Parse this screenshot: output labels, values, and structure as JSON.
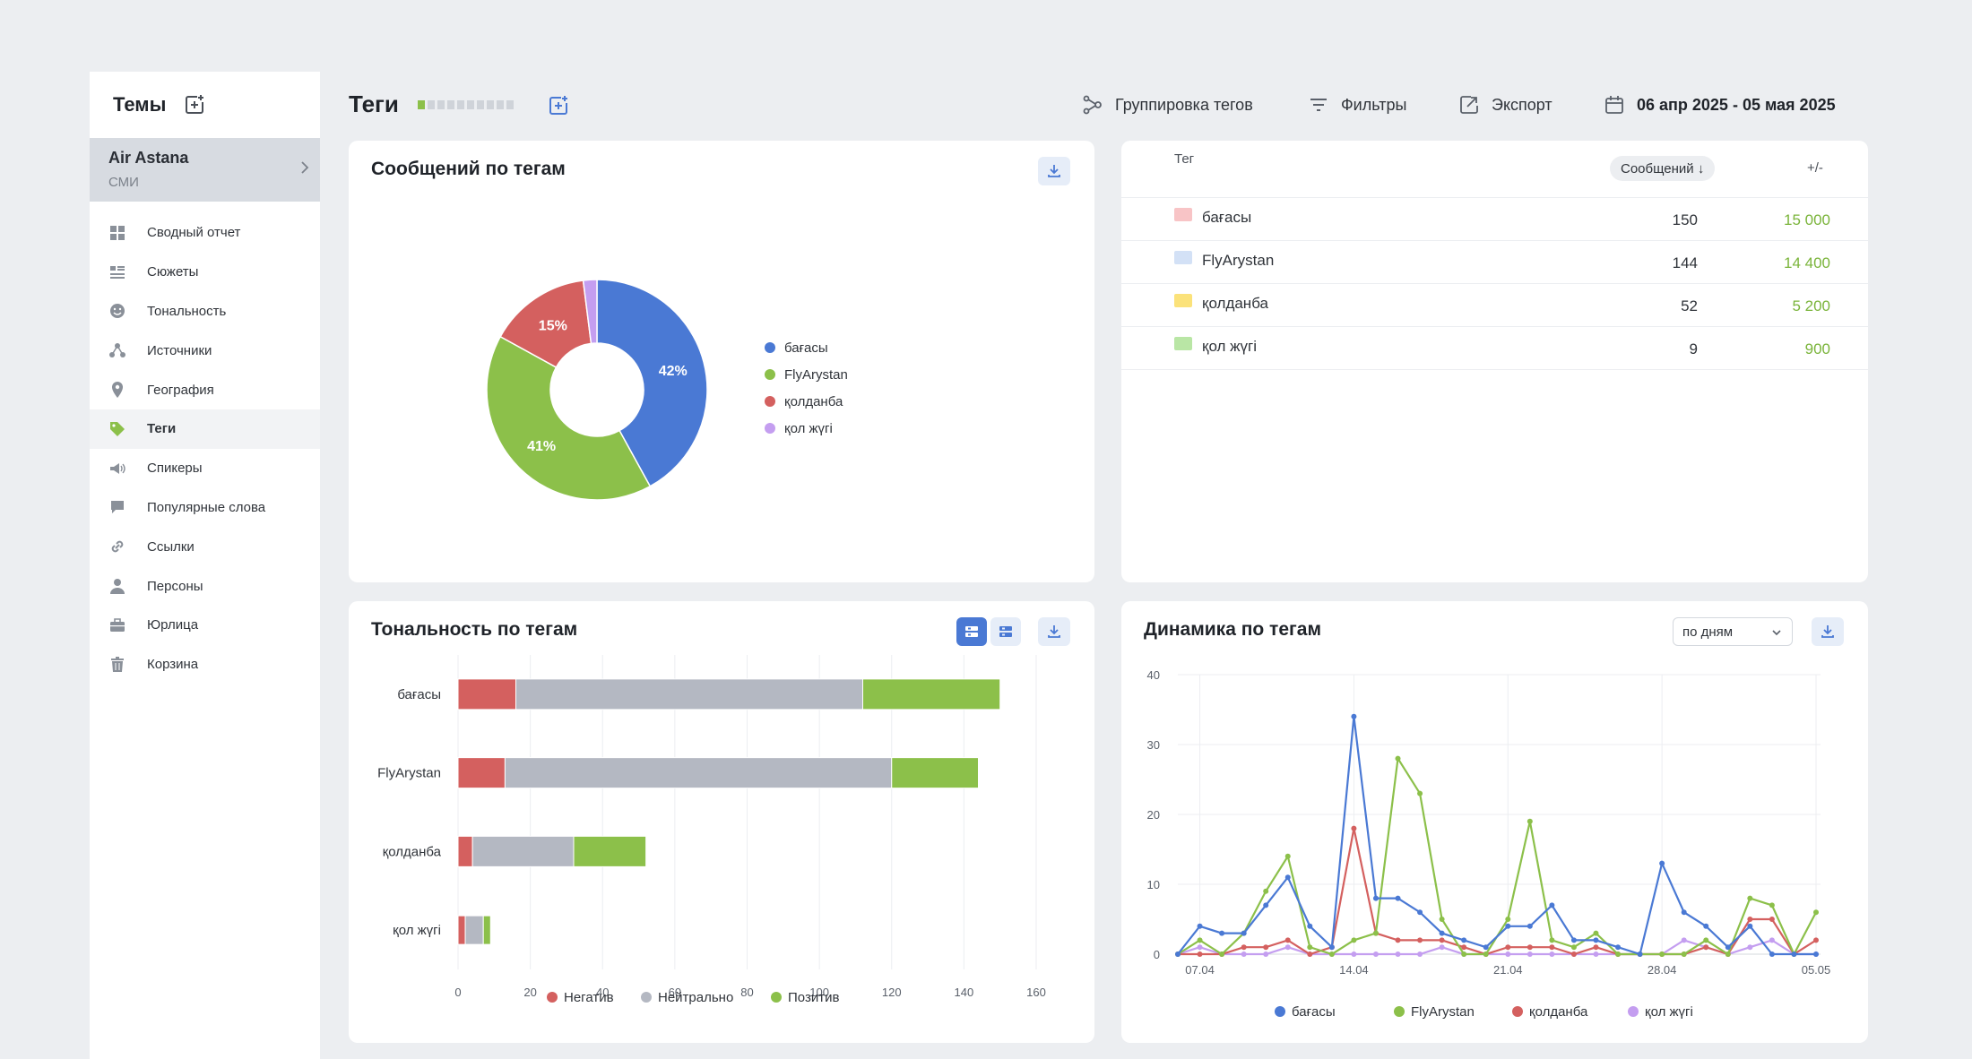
{
  "sidebar": {
    "title": "Темы",
    "topic": {
      "name": "Air Astana",
      "sub": "СМИ"
    },
    "items": [
      {
        "label": "Сводный отчет",
        "icon": "grid-icon"
      },
      {
        "label": "Сюжеты",
        "icon": "list-icon"
      },
      {
        "label": "Тональность",
        "icon": "smile-icon"
      },
      {
        "label": "Источники",
        "icon": "network-icon"
      },
      {
        "label": "География",
        "icon": "map-pin-icon"
      },
      {
        "label": "Теги",
        "icon": "tag-icon",
        "active": true
      },
      {
        "label": "Спикеры",
        "icon": "speaker-icon"
      },
      {
        "label": "Популярные слова",
        "icon": "chat-icon"
      },
      {
        "label": "Ссылки",
        "icon": "link-icon"
      },
      {
        "label": "Персоны",
        "icon": "person-icon"
      },
      {
        "label": "Юрлица",
        "icon": "briefcase-icon"
      },
      {
        "label": "Корзина",
        "icon": "trash-icon"
      }
    ]
  },
  "header": {
    "title": "Теги",
    "pager": {
      "total": 10,
      "active": 1
    },
    "tools": {
      "grouping": "Группировка тегов",
      "filters": "Фильтры",
      "export": "Экспорт",
      "date_range": "06 апр 2025 - 05 мая 2025"
    }
  },
  "colors": {
    "accent": "#4a79d4",
    "bagasy": "#4a79d4",
    "flyarystan": "#8cc04a",
    "qoldanba": "#d4605f",
    "qol_zhugi": "#c49ef0",
    "negative": "#d4605f",
    "neutral": "#b4b8c2",
    "positive": "#8cc04a"
  },
  "donut_card": {
    "title": "Сообщений по тегам"
  },
  "table": {
    "columns": {
      "tag": "Тег",
      "messages": "Сообщений ↓",
      "delta": "+/-"
    },
    "rows": [
      {
        "name": "бағасы",
        "count": "150",
        "delta": "15 000",
        "swatch": "#f8c4c6"
      },
      {
        "name": "FlyArystan",
        "count": "144",
        "delta": "14 400",
        "swatch": "#d3e1f6"
      },
      {
        "name": "қолданба",
        "count": "52",
        "delta": "5 200",
        "swatch": "#fbe27a"
      },
      {
        "name": "қол жүгі",
        "count": "9",
        "delta": "900",
        "swatch": "#b9e6a5"
      }
    ]
  },
  "sentiment_card": {
    "title": "Тональность по тегам"
  },
  "dynamics_card": {
    "title": "Динамика по тегам",
    "period_select": "по дням"
  },
  "chart_data": [
    {
      "type": "pie",
      "title": "Сообщений по тегам",
      "labels": [
        "бағасы",
        "FlyArystan",
        "қолданба",
        "қол жүгі"
      ],
      "values": [
        42,
        41,
        15,
        2
      ],
      "value_labels": [
        "42%",
        "41%",
        "15%",
        ""
      ],
      "colors": [
        "#4a79d4",
        "#8cc04a",
        "#d4605f",
        "#c49ef0"
      ],
      "legend": "right"
    },
    {
      "type": "bar",
      "orientation": "horizontal",
      "stacked": true,
      "title": "Тональность по тегам",
      "categories": [
        "бағасы",
        "FlyArystan",
        "қолданба",
        "қол жүгі"
      ],
      "series": [
        {
          "name": "Негатив",
          "values": [
            16,
            13,
            4,
            2
          ],
          "color": "#d4605f"
        },
        {
          "name": "Нейтрально",
          "values": [
            96,
            107,
            28,
            5
          ],
          "color": "#b4b8c2"
        },
        {
          "name": "Позитив",
          "values": [
            38,
            24,
            20,
            2
          ],
          "color": "#8cc04a"
        }
      ],
      "xlim": [
        0,
        160
      ],
      "xticks": [
        "0",
        "20",
        "40",
        "60",
        "80",
        "100",
        "120",
        "140",
        "160"
      ],
      "grid": true,
      "legend": "bottom"
    },
    {
      "type": "line",
      "title": "Динамика по тегам",
      "x": [
        "06.04",
        "07.04",
        "08.04",
        "09.04",
        "10.04",
        "11.04",
        "12.04",
        "13.04",
        "14.04",
        "15.04",
        "16.04",
        "17.04",
        "18.04",
        "19.04",
        "20.04",
        "21.04",
        "22.04",
        "23.04",
        "24.04",
        "25.04",
        "26.04",
        "27.04",
        "28.04",
        "29.04",
        "30.04",
        "01.05",
        "02.05",
        "03.05",
        "04.05",
        "05.05"
      ],
      "xticks": [
        "07.04",
        "14.04",
        "21.04",
        "28.04",
        "05.05"
      ],
      "ylim": [
        0,
        40
      ],
      "yticks": [
        "0",
        "10",
        "20",
        "30",
        "40"
      ],
      "series": [
        {
          "name": "бағасы",
          "color": "#4a79d4",
          "values": [
            0,
            4,
            3,
            3,
            7,
            11,
            4,
            1,
            34,
            8,
            8,
            6,
            3,
            2,
            1,
            4,
            4,
            7,
            2,
            2,
            1,
            0,
            13,
            6,
            4,
            1,
            4,
            0,
            0,
            0
          ]
        },
        {
          "name": "FlyArystan",
          "color": "#8cc04a",
          "values": [
            0,
            2,
            0,
            3,
            9,
            14,
            1,
            0,
            2,
            3,
            28,
            23,
            5,
            0,
            0,
            5,
            19,
            2,
            1,
            3,
            0,
            0,
            0,
            0,
            2,
            0,
            8,
            7,
            0,
            6
          ]
        },
        {
          "name": "қолданба",
          "color": "#d4605f",
          "values": [
            0,
            0,
            0,
            1,
            1,
            2,
            0,
            1,
            18,
            3,
            2,
            2,
            2,
            1,
            0,
            1,
            1,
            1,
            0,
            1,
            0,
            0,
            0,
            0,
            1,
            0,
            5,
            5,
            0,
            2
          ]
        },
        {
          "name": "қол жүгі",
          "color": "#c49ef0",
          "values": [
            0,
            1,
            0,
            0,
            0,
            1,
            0,
            0,
            0,
            0,
            0,
            0,
            1,
            0,
            0,
            0,
            0,
            0,
            0,
            0,
            0,
            0,
            0,
            2,
            1,
            0,
            1,
            2,
            0,
            0
          ]
        }
      ],
      "grid": true,
      "legend": "bottom"
    }
  ]
}
